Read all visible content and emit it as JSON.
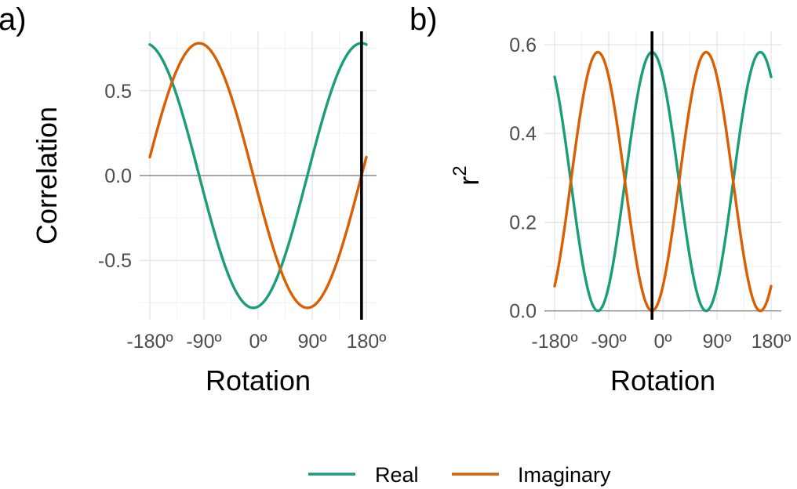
{
  "chart_data": [
    {
      "type": "line",
      "panel_tag": "a)",
      "xlabel": "Rotation",
      "ylabel": "Correlation",
      "ylabel_superscript": "",
      "xlim": [
        -180,
        180
      ],
      "ylim": [
        -0.85,
        0.85
      ],
      "x_ticks": [
        -180,
        -90,
        0,
        90,
        180
      ],
      "x_tick_labels": [
        "-180º",
        "-90º",
        "0º",
        "90º",
        "180º"
      ],
      "y_ticks": [
        -0.5,
        0,
        0.5
      ],
      "y_tick_labels": [
        "-0.5",
        "0.0",
        "0.5"
      ],
      "grid": true,
      "reference_hline": 0,
      "vline_x": 172,
      "series": [
        {
          "name": "Real",
          "color": "#1b9e77",
          "amplitude": 0.78,
          "phase_deg": 172,
          "period": 360,
          "squared": false
        },
        {
          "name": "Imaginary",
          "color": "#d95f02",
          "amplitude": 0.78,
          "phase_deg": -98,
          "period": 360,
          "squared": false
        }
      ]
    },
    {
      "type": "line",
      "panel_tag": "b)",
      "xlabel": "Rotation",
      "ylabel": "r",
      "ylabel_superscript": "2",
      "xlim": [
        -180,
        180
      ],
      "ylim": [
        -0.02,
        0.63
      ],
      "x_ticks": [
        -180,
        -90,
        0,
        90,
        180
      ],
      "x_tick_labels": [
        "-180º",
        "-90º",
        "0º",
        "90º",
        "180º"
      ],
      "y_ticks": [
        0,
        0.2,
        0.4,
        0.6
      ],
      "y_tick_labels": [
        "0.0",
        "0.2",
        "0.4",
        "0.6"
      ],
      "grid": true,
      "reference_hline": 0,
      "vline_x": -18,
      "series": [
        {
          "name": "Real",
          "color": "#1b9e77",
          "amplitude": 0.583,
          "phase_deg": -18,
          "period": 360,
          "squared": true
        },
        {
          "name": "Imaginary",
          "color": "#d95f02",
          "amplitude": 0.583,
          "phase_deg": -108,
          "period": 360,
          "squared": true
        }
      ]
    }
  ],
  "legend": {
    "placement": "bottom",
    "items": [
      {
        "label": "Real",
        "color": "#1b9e77"
      },
      {
        "label": "Imaginary",
        "color": "#d95f02"
      }
    ]
  }
}
